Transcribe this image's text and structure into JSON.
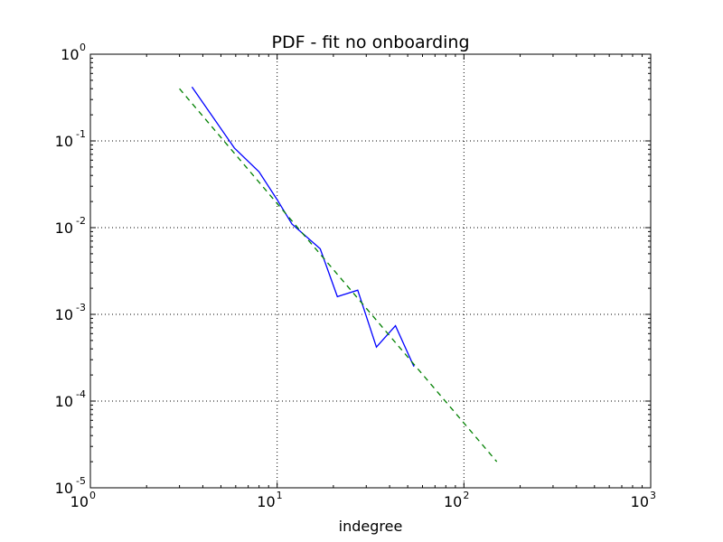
{
  "chart_data": {
    "type": "line",
    "title": "PDF - fit no onboarding",
    "xlabel": "indegree",
    "ylabel": "",
    "x_scale": "log",
    "y_scale": "log",
    "xlim": [
      1,
      1000
    ],
    "ylim": [
      1e-05,
      1
    ],
    "grid": true,
    "x_ticks": [
      {
        "value": 1,
        "base": "10",
        "exp": "0"
      },
      {
        "value": 10,
        "base": "10",
        "exp": "1"
      },
      {
        "value": 100,
        "base": "10",
        "exp": "2"
      },
      {
        "value": 1000,
        "base": "10",
        "exp": "3"
      }
    ],
    "y_ticks": [
      {
        "value": 1,
        "base": "10",
        "exp": "0"
      },
      {
        "value": 0.1,
        "base": "10",
        "exp": "-1"
      },
      {
        "value": 0.01,
        "base": "10",
        "exp": "-2"
      },
      {
        "value": 0.001,
        "base": "10",
        "exp": "-3"
      },
      {
        "value": 0.0001,
        "base": "10",
        "exp": "-4"
      },
      {
        "value": 1e-05,
        "base": "10",
        "exp": "-5"
      }
    ],
    "series": [
      {
        "color": "#0000ff",
        "style": "solid",
        "x": [
          3.5,
          5.9,
          8.0,
          10.0,
          12.0,
          17.0,
          21.0,
          27.0,
          34.0,
          43.0,
          54.0
        ],
        "y": [
          0.42,
          0.083,
          0.044,
          0.021,
          0.011,
          0.0057,
          0.0016,
          0.0019,
          0.00042,
          0.00074,
          0.00025
        ]
      },
      {
        "color": "#008000",
        "style": "dashed",
        "x": [
          3.0,
          150.0
        ],
        "y": [
          0.4,
          2e-05
        ]
      }
    ]
  }
}
